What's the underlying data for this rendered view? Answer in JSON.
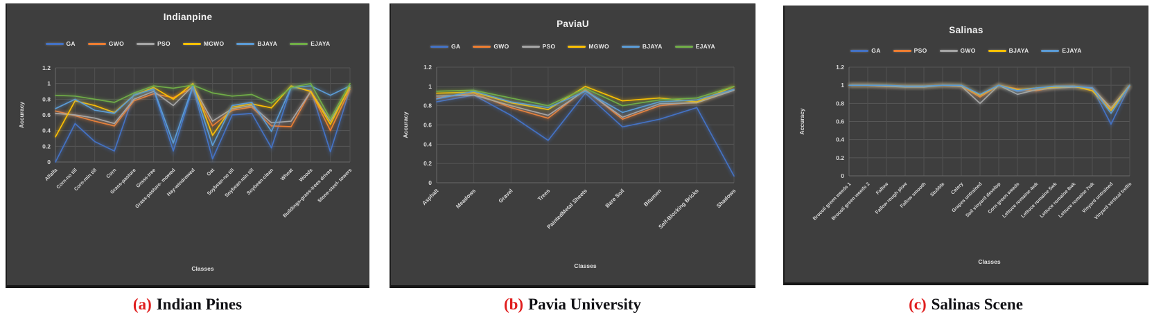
{
  "figure": {
    "background_color": "#3e3e3e",
    "caption_accent_color": "#e01e1e",
    "captions": [
      {
        "label": "(a)",
        "text": "Indian Pines"
      },
      {
        "label": "(b)",
        "text": "Pavia University"
      },
      {
        "label": "(c)",
        "text": "Salinas Scene"
      }
    ]
  },
  "chart_data": [
    {
      "type": "line",
      "title": "Indianpine",
      "xlabel": "Classes",
      "ylabel": "Accuracy",
      "ylim": [
        0,
        1.2
      ],
      "yticks": [
        0,
        0.2,
        0.4,
        0.6,
        0.8,
        1,
        1.2
      ],
      "grid": true,
      "legend_position": "top",
      "categories": [
        "Alfalfa",
        "Corn-no till",
        "Corn-min till",
        "Corn",
        "Grass-pasture",
        "Grass-tree",
        "Grass-pasture- mowed",
        "Hay-windrowed",
        "Oat",
        "Soybean-no till",
        "Soybean-min till",
        "Soybean-clean",
        "Wheat",
        "Woods",
        "Buildings-grass-trees drives",
        "Stone-steel- towers"
      ],
      "series": [
        {
          "name": "GA",
          "color": "#4472C4",
          "values": [
            0.0,
            0.49,
            0.26,
            0.14,
            0.87,
            0.92,
            0.14,
            0.95,
            0.04,
            0.6,
            0.62,
            0.18,
            0.95,
            0.92,
            0.13,
            0.93
          ]
        },
        {
          "name": "GWO",
          "color": "#ED7D31",
          "values": [
            0.65,
            0.59,
            0.52,
            0.46,
            0.78,
            0.87,
            0.82,
            0.95,
            0.46,
            0.66,
            0.7,
            0.46,
            0.45,
            0.9,
            0.4,
            0.93
          ]
        },
        {
          "name": "PSO",
          "color": "#A5A5A5",
          "values": [
            0.62,
            0.6,
            0.56,
            0.49,
            0.8,
            0.9,
            0.72,
            0.97,
            0.52,
            0.68,
            0.72,
            0.5,
            0.52,
            0.9,
            0.52,
            0.95
          ]
        },
        {
          "name": "MGWO",
          "color": "#FFC000",
          "values": [
            0.32,
            0.78,
            0.72,
            0.63,
            0.85,
            0.95,
            0.8,
            1.0,
            0.34,
            0.7,
            0.74,
            0.69,
            0.97,
            0.9,
            0.48,
            0.97
          ]
        },
        {
          "name": "BJAYA",
          "color": "#5B9BD5",
          "values": [
            0.68,
            0.8,
            0.66,
            0.62,
            0.85,
            0.93,
            0.24,
            0.97,
            0.21,
            0.72,
            0.76,
            0.39,
            0.95,
            0.97,
            0.85,
            0.97
          ]
        },
        {
          "name": "EJAYA",
          "color": "#70AD47",
          "values": [
            0.85,
            0.84,
            0.8,
            0.76,
            0.88,
            0.97,
            0.94,
            0.98,
            0.88,
            0.84,
            0.86,
            0.75,
            0.95,
            1.0,
            0.55,
            1.0
          ]
        }
      ]
    },
    {
      "type": "line",
      "title": "PaviaU",
      "xlabel": "Classes",
      "ylabel": "Accuracy",
      "ylim": [
        0,
        1.2
      ],
      "yticks": [
        0,
        0.2,
        0.4,
        0.6,
        0.8,
        1,
        1.2
      ],
      "grid": true,
      "legend_position": "top",
      "categories": [
        "Asphalt",
        "Meadows",
        "Gravel",
        "Trees",
        "PaintedMetal Sheets",
        "Bare Soil",
        "Bitumen",
        "Self-Blocking Bricks",
        "Shadows"
      ],
      "series": [
        {
          "name": "GA",
          "color": "#4472C4",
          "values": [
            0.84,
            0.91,
            0.7,
            0.44,
            0.93,
            0.58,
            0.66,
            0.78,
            0.07
          ]
        },
        {
          "name": "GWO",
          "color": "#ED7D31",
          "values": [
            0.88,
            0.93,
            0.78,
            0.67,
            0.97,
            0.66,
            0.8,
            0.84,
            0.97
          ]
        },
        {
          "name": "PSO",
          "color": "#A5A5A5",
          "values": [
            0.9,
            0.91,
            0.8,
            0.7,
            0.96,
            0.68,
            0.82,
            0.83,
            0.96
          ]
        },
        {
          "name": "MGWO",
          "color": "#FFC000",
          "values": [
            0.93,
            0.94,
            0.83,
            0.76,
            1.0,
            0.85,
            0.88,
            0.84,
            1.0
          ]
        },
        {
          "name": "BJAYA",
          "color": "#5B9BD5",
          "values": [
            0.87,
            0.95,
            0.84,
            0.78,
            0.95,
            0.73,
            0.84,
            0.86,
            0.97
          ]
        },
        {
          "name": "EJAYA",
          "color": "#70AD47",
          "values": [
            0.95,
            0.96,
            0.88,
            0.8,
            0.98,
            0.8,
            0.86,
            0.88,
            1.0
          ]
        }
      ]
    },
    {
      "type": "line",
      "title": "Salinas",
      "xlabel": "Classes",
      "ylabel": "Accuracy",
      "ylim": [
        0,
        1.2
      ],
      "yticks": [
        0,
        0.2,
        0.4,
        0.6,
        0.8,
        1,
        1.2
      ],
      "grid": true,
      "legend_position": "top",
      "categories": [
        "Brocoli green weeds 1",
        "Brocoli green weeds 2",
        "Fallow",
        "Fallow rough plow",
        "Fallow smooth",
        "Stubble",
        "Celery",
        "Grapes untrained",
        "Soil vinyard develop",
        "Corn green weeds",
        "Lettuce romaine 4wk",
        "Lettuce romaine 5wk",
        "Lettuce romaine 6wk",
        "Lettuce romaine 7wk",
        "Vinyard untrained",
        "Vinyard vertical trellis"
      ],
      "series": [
        {
          "name": "GA",
          "color": "#4472C4",
          "values": [
            1.0,
            1.0,
            0.99,
            0.99,
            0.99,
            1.0,
            0.99,
            0.88,
            1.0,
            0.93,
            0.95,
            0.97,
            0.98,
            0.97,
            0.57,
            1.0
          ]
        },
        {
          "name": "PSO",
          "color": "#ED7D31",
          "values": [
            1.0,
            1.0,
            0.99,
            0.99,
            0.99,
            1.0,
            0.99,
            0.87,
            1.0,
            0.96,
            0.94,
            0.98,
            0.99,
            0.96,
            0.74,
            0.99
          ]
        },
        {
          "name": "GWO",
          "color": "#A5A5A5",
          "values": [
            1.0,
            1.0,
            0.99,
            0.98,
            0.98,
            1.0,
            0.99,
            0.8,
            1.0,
            0.9,
            0.95,
            0.97,
            0.98,
            0.97,
            0.75,
            1.0
          ]
        },
        {
          "name": "BJAYA",
          "color": "#FFC000",
          "values": [
            1.0,
            1.0,
            1.0,
            0.99,
            0.99,
            1.0,
            1.0,
            0.89,
            1.0,
            0.95,
            0.97,
            0.98,
            0.99,
            0.94,
            0.72,
            1.0
          ]
        },
        {
          "name": "EJAYA",
          "color": "#5B9BD5",
          "values": [
            1.0,
            1.0,
            1.0,
            0.99,
            0.99,
            1.0,
            1.0,
            0.9,
            1.0,
            0.94,
            0.97,
            0.99,
            0.99,
            0.97,
            0.69,
            1.0
          ]
        }
      ]
    }
  ]
}
